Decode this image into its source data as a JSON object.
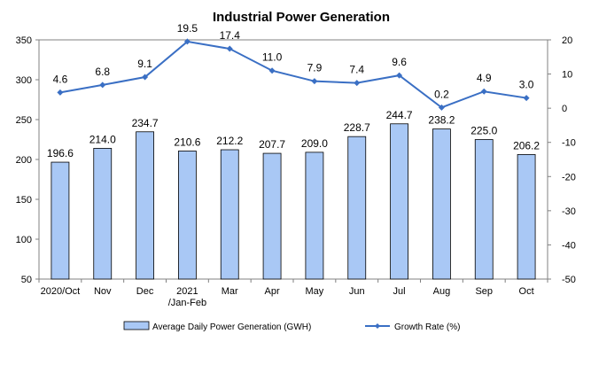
{
  "chart_data": {
    "type": "bar",
    "title": "Industrial Power Generation",
    "categories": [
      "2020/Oct",
      "Nov",
      "Dec",
      "2021\n/Jan-Feb",
      "Mar",
      "Apr",
      "May",
      "Jun",
      "Jul",
      "Aug",
      "Sep",
      "Oct"
    ],
    "series": [
      {
        "name": "Average Daily Power Generation (GWH)",
        "kind": "bar",
        "axis": "left",
        "color": "#a9c8f5",
        "values": [
          196.6,
          214.0,
          234.7,
          210.6,
          212.2,
          207.7,
          209.0,
          228.7,
          244.7,
          238.2,
          225.0,
          206.2
        ],
        "labels": [
          "196.6",
          "214.0",
          "234.7",
          "210.6",
          "212.2",
          "207.7",
          "209.0",
          "228.7",
          "244.7",
          "238.2",
          "225.0",
          "206.2"
        ]
      },
      {
        "name": "Growth Rate (%)",
        "kind": "line",
        "axis": "right",
        "color": "#3a6fc4",
        "values": [
          4.6,
          6.8,
          9.1,
          19.5,
          17.4,
          11.0,
          7.9,
          7.4,
          9.6,
          0.2,
          4.9,
          3.0
        ],
        "labels": [
          "4.6",
          "6.8",
          "9.1",
          "19.5",
          "17.4",
          "11.0",
          "7.9",
          "7.4",
          "9.6",
          "0.2",
          "4.9",
          "3.0"
        ]
      }
    ],
    "y_left": {
      "min": 50,
      "max": 350,
      "ticks": [
        50,
        100,
        150,
        200,
        250,
        300,
        350
      ]
    },
    "y_right": {
      "min": -50,
      "max": 20,
      "ticks": [
        -50,
        -40,
        -30,
        -20,
        -10,
        0,
        10,
        20
      ]
    },
    "grid": false,
    "legend_position": "bottom"
  }
}
